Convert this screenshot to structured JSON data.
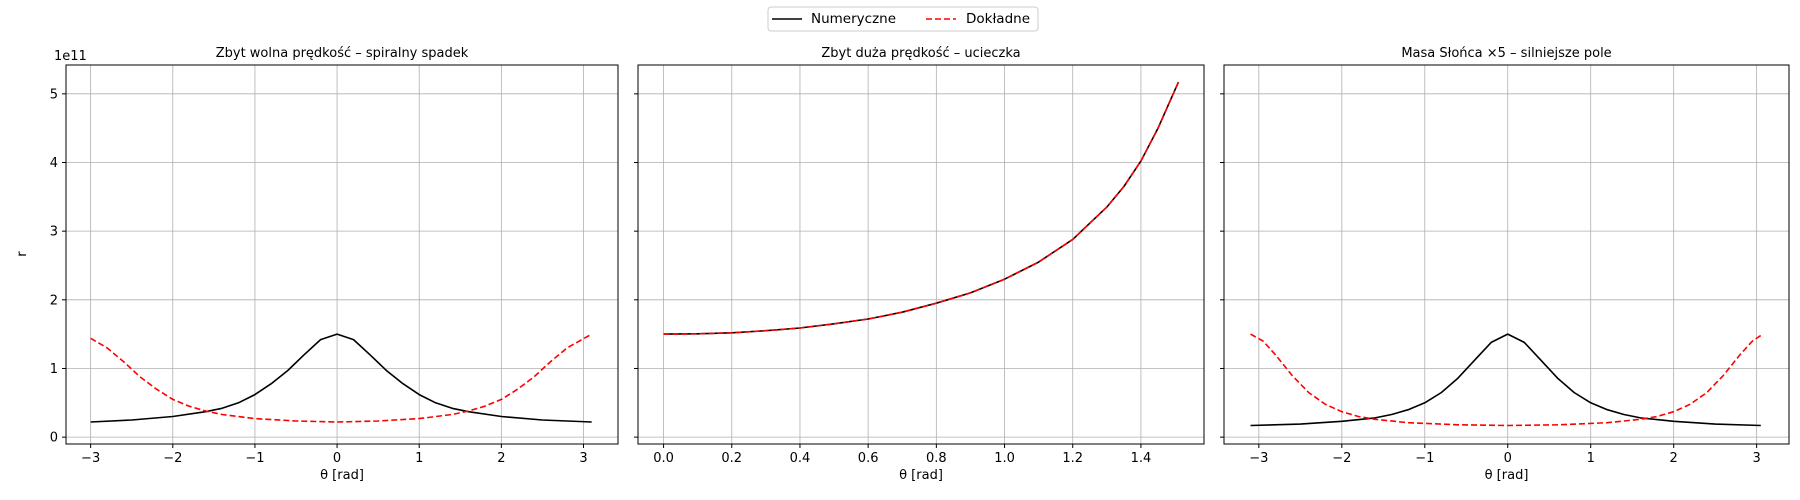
{
  "legend": {
    "placement": "top-center",
    "entries": [
      {
        "label": "Numeryczne",
        "color": "#000000",
        "style": "solid"
      },
      {
        "label": "Dokładne",
        "color": "#ff0000",
        "style": "dashed"
      }
    ]
  },
  "shared_y": {
    "label": "r",
    "offset_text": "1e11",
    "ylim": [
      -0.1,
      5.42
    ],
    "ticks": [
      0,
      1,
      2,
      3,
      4,
      5
    ],
    "tick_labels": [
      "0",
      "1",
      "2",
      "3",
      "4",
      "5"
    ]
  },
  "chart_data": [
    {
      "type": "line",
      "title": "Zbyt wolna prędkość – spiralny spadek",
      "xlabel": "θ [rad]",
      "xlim": [
        -3.3,
        3.42
      ],
      "xticks": [
        -3,
        -2,
        -1,
        0,
        1,
        2,
        3
      ],
      "xtick_labels": [
        "−3",
        "−2",
        "−1",
        "0",
        "1",
        "2",
        "3"
      ],
      "grid": true,
      "series": [
        {
          "name": "Numeryczne",
          "color": "#000000",
          "style": "solid",
          "x": [
            -3.0,
            -2.5,
            -2.0,
            -1.6,
            -1.4,
            -1.2,
            -1.0,
            -0.8,
            -0.6,
            -0.4,
            -0.2,
            0.0,
            0.2,
            0.4,
            0.6,
            0.8,
            1.0,
            1.2,
            1.4,
            1.6,
            2.0,
            2.5,
            3.1
          ],
          "y": [
            0.22,
            0.25,
            0.3,
            0.37,
            0.42,
            0.5,
            0.62,
            0.78,
            0.97,
            1.2,
            1.42,
            1.5,
            1.42,
            1.2,
            0.97,
            0.78,
            0.62,
            0.5,
            0.42,
            0.37,
            0.3,
            0.25,
            0.22
          ]
        },
        {
          "name": "Dokładne",
          "color": "#ff0000",
          "style": "dashed",
          "x": [
            -3.0,
            -2.8,
            -2.6,
            -2.4,
            -2.2,
            -2.0,
            -1.8,
            -1.6,
            -1.4,
            -1.0,
            -0.5,
            0.0,
            0.5,
            1.0,
            1.4,
            1.6,
            1.8,
            2.0,
            2.2,
            2.4,
            2.6,
            2.8,
            3.1
          ],
          "y": [
            1.44,
            1.3,
            1.1,
            0.88,
            0.7,
            0.55,
            0.45,
            0.38,
            0.33,
            0.27,
            0.235,
            0.22,
            0.235,
            0.27,
            0.33,
            0.38,
            0.45,
            0.55,
            0.7,
            0.88,
            1.1,
            1.3,
            1.5
          ]
        }
      ]
    },
    {
      "type": "line",
      "title": "Zbyt duża prędkość – ucieczka",
      "xlabel": "θ [rad]",
      "xlim": [
        -0.075,
        1.585
      ],
      "xticks": [
        0.0,
        0.2,
        0.4,
        0.6,
        0.8,
        1.0,
        1.2,
        1.4
      ],
      "xtick_labels": [
        "0.0",
        "0.2",
        "0.4",
        "0.6",
        "0.8",
        "1.0",
        "1.2",
        "1.4"
      ],
      "grid": true,
      "series": [
        {
          "name": "Numeryczne",
          "color": "#000000",
          "style": "solid",
          "x": [
            0.0,
            0.1,
            0.2,
            0.3,
            0.4,
            0.5,
            0.6,
            0.7,
            0.8,
            0.9,
            1.0,
            1.1,
            1.2,
            1.3,
            1.35,
            1.4,
            1.45,
            1.51
          ],
          "y": [
            1.5,
            1.505,
            1.52,
            1.55,
            1.59,
            1.65,
            1.72,
            1.82,
            1.95,
            2.1,
            2.3,
            2.55,
            2.88,
            3.35,
            3.65,
            4.02,
            4.5,
            5.17
          ]
        },
        {
          "name": "Dokładne",
          "color": "#ff0000",
          "style": "dashed",
          "x": [
            0.0,
            0.1,
            0.2,
            0.3,
            0.4,
            0.5,
            0.6,
            0.7,
            0.8,
            0.9,
            1.0,
            1.1,
            1.2,
            1.3,
            1.35,
            1.4,
            1.45,
            1.51
          ],
          "y": [
            1.5,
            1.505,
            1.52,
            1.55,
            1.59,
            1.65,
            1.72,
            1.82,
            1.95,
            2.1,
            2.3,
            2.55,
            2.88,
            3.35,
            3.65,
            4.02,
            4.5,
            5.17
          ]
        }
      ]
    },
    {
      "type": "line",
      "title": "Masa Słońca ×5 – silniejsze pole",
      "xlabel": "θ [rad]",
      "xlim": [
        -3.42,
        3.39
      ],
      "xticks": [
        -3,
        -2,
        -1,
        0,
        1,
        2,
        3
      ],
      "xtick_labels": [
        "−3",
        "−2",
        "−1",
        "0",
        "1",
        "2",
        "3"
      ],
      "grid": true,
      "series": [
        {
          "name": "Numeryczne",
          "color": "#000000",
          "style": "solid",
          "x": [
            -3.1,
            -2.5,
            -2.0,
            -1.6,
            -1.4,
            -1.2,
            -1.0,
            -0.8,
            -0.6,
            -0.4,
            -0.2,
            0.0,
            0.2,
            0.4,
            0.6,
            0.8,
            1.0,
            1.2,
            1.4,
            1.6,
            2.0,
            2.5,
            3.05
          ],
          "y": [
            0.17,
            0.19,
            0.23,
            0.28,
            0.33,
            0.4,
            0.5,
            0.65,
            0.86,
            1.12,
            1.38,
            1.5,
            1.38,
            1.12,
            0.86,
            0.65,
            0.5,
            0.4,
            0.33,
            0.28,
            0.23,
            0.19,
            0.17
          ]
        },
        {
          "name": "Dokładne",
          "color": "#ff0000",
          "style": "dashed",
          "x": [
            -3.1,
            -2.95,
            -2.8,
            -2.6,
            -2.4,
            -2.2,
            -2.0,
            -1.8,
            -1.6,
            -1.2,
            -0.6,
            0.0,
            0.6,
            1.2,
            1.6,
            1.8,
            2.0,
            2.2,
            2.4,
            2.6,
            2.8,
            2.95,
            3.05
          ],
          "y": [
            1.5,
            1.4,
            1.2,
            0.9,
            0.65,
            0.48,
            0.37,
            0.3,
            0.26,
            0.21,
            0.18,
            0.17,
            0.18,
            0.21,
            0.26,
            0.3,
            0.37,
            0.48,
            0.65,
            0.9,
            1.2,
            1.4,
            1.48
          ]
        }
      ]
    }
  ]
}
